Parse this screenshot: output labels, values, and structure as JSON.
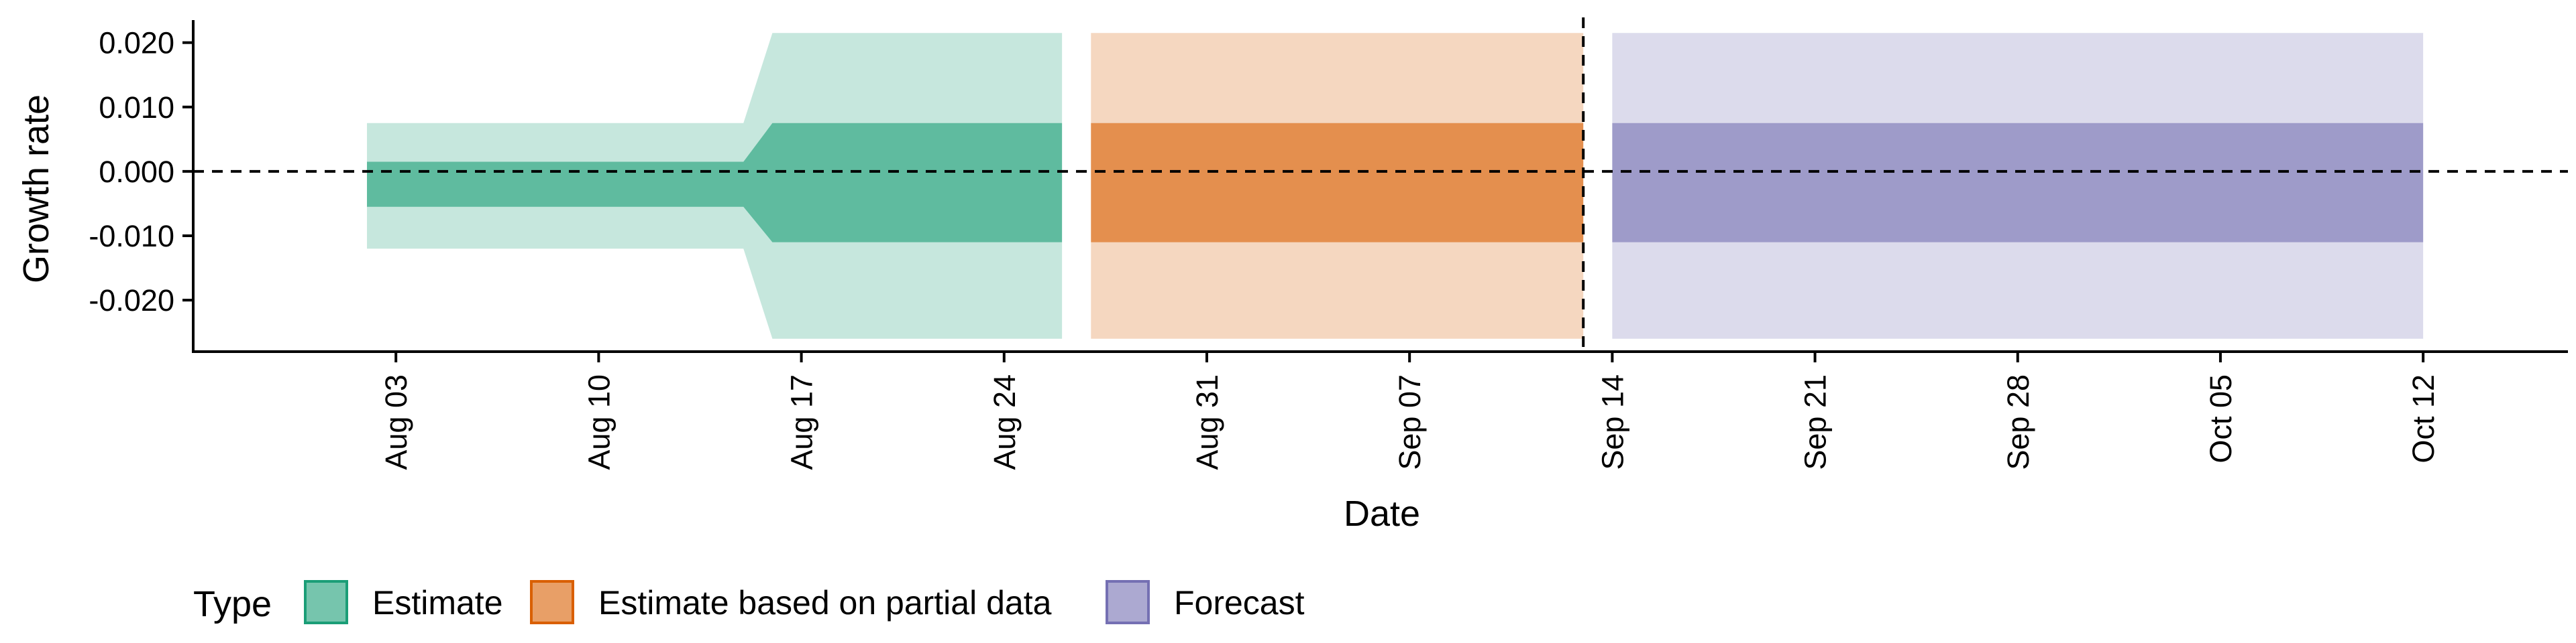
{
  "chart_data": {
    "type": "area",
    "xlabel": "Date",
    "ylabel": "Growth rate",
    "x_range": [
      "2024-07-27",
      "2024-10-17"
    ],
    "ylim": [
      -0.028,
      0.0235
    ],
    "y_ticks": [
      0.02,
      0.01,
      0.0,
      -0.01,
      -0.02
    ],
    "y_tick_labels": [
      "0.020",
      "0.010",
      "0.000",
      "-0.010",
      "-0.020"
    ],
    "x_ticks": [
      "2024-08-03",
      "2024-08-10",
      "2024-08-17",
      "2024-08-24",
      "2024-08-31",
      "2024-09-07",
      "2024-09-14",
      "2024-09-21",
      "2024-09-28",
      "2024-10-05",
      "2024-10-12"
    ],
    "x_tick_labels": [
      "Aug 03",
      "Aug 10",
      "Aug 17",
      "Aug 24",
      "Aug 31",
      "Sep 07",
      "Sep 14",
      "Sep 21",
      "Sep 28",
      "Oct 05",
      "Oct 12"
    ],
    "reference_hline": 0.0,
    "reference_vline": "2024-09-13",
    "series": [
      {
        "name": "Estimate",
        "color": "#1b9e77",
        "dates": [
          "2024-08-02",
          "2024-08-15",
          "2024-08-16",
          "2024-08-26"
        ],
        "lower_90": [
          -0.012,
          -0.012,
          -0.026,
          -0.026
        ],
        "upper_90": [
          0.0075,
          0.0075,
          0.0215,
          0.0215
        ],
        "lower_50": [
          -0.0055,
          -0.0055,
          -0.011,
          -0.011
        ],
        "upper_50": [
          0.0015,
          0.0015,
          0.0075,
          0.0075
        ]
      },
      {
        "name": "Estimate based on partial data",
        "color": "#d95f02",
        "dates": [
          "2024-08-27",
          "2024-09-13"
        ],
        "lower_90": [
          -0.026,
          -0.026
        ],
        "upper_90": [
          0.0215,
          0.0215
        ],
        "lower_50": [
          -0.011,
          -0.011
        ],
        "upper_50": [
          0.0075,
          0.0075
        ]
      },
      {
        "name": "Forecast",
        "color": "#7570b3",
        "dates": [
          "2024-09-14",
          "2024-10-12"
        ],
        "lower_90": [
          -0.026,
          -0.026
        ],
        "upper_90": [
          0.0215,
          0.0215
        ],
        "lower_50": [
          -0.011,
          -0.011
        ],
        "upper_50": [
          0.0075,
          0.0075
        ]
      }
    ],
    "legend": {
      "title": "Type",
      "position": "bottom-left",
      "items": [
        {
          "label": "Estimate",
          "color": "#1b9e77"
        },
        {
          "label": "Estimate based on partial data",
          "color": "#d95f02"
        },
        {
          "label": "Forecast",
          "color": "#7570b3"
        }
      ]
    }
  }
}
